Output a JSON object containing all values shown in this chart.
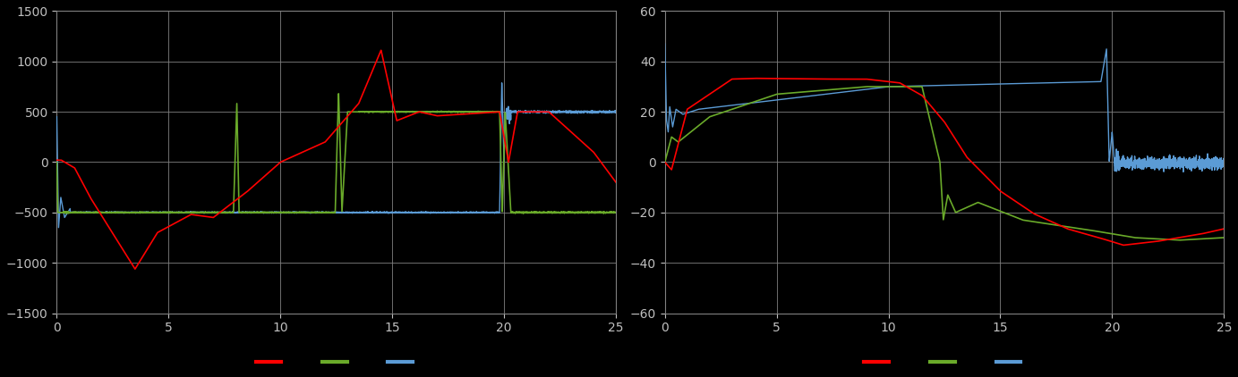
{
  "background_color": "#000000",
  "plot_bg_color": "#000000",
  "grid_color": "#808080",
  "text_color": "#c0c0c0",
  "fig_width": 13.83,
  "fig_height": 4.22,
  "left_ylim": [
    -1500,
    1500
  ],
  "left_yticks": [
    -1500,
    -1000,
    -500,
    0,
    500,
    1000,
    1500
  ],
  "left_xlim": [
    0,
    25
  ],
  "left_xticks": [
    0,
    5,
    10,
    15,
    20,
    25
  ],
  "right_ylim": [
    -60,
    60
  ],
  "right_yticks": [
    -60,
    -40,
    -20,
    0,
    20,
    40,
    60
  ],
  "right_xlim": [
    0,
    25
  ],
  "right_xticks": [
    0,
    5,
    10,
    15,
    20,
    25
  ],
  "colors": {
    "red": "#ff0000",
    "green": "#6aaa2a",
    "blue": "#5b9bd5"
  },
  "legend_colors": [
    "#ff0000",
    "#6aaa2a",
    "#5b9bd5"
  ]
}
